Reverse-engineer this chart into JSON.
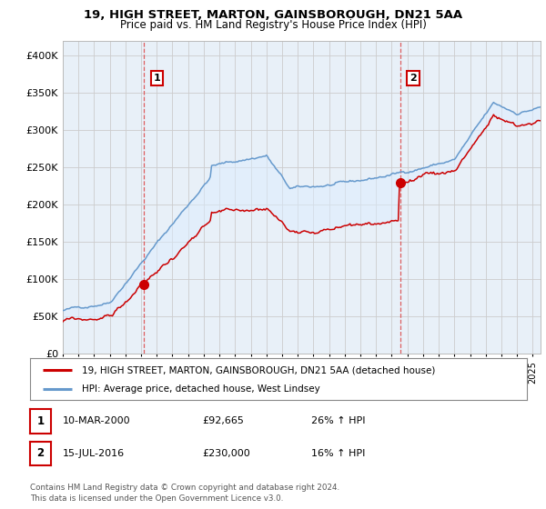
{
  "title": "19, HIGH STREET, MARTON, GAINSBOROUGH, DN21 5AA",
  "subtitle": "Price paid vs. HM Land Registry's House Price Index (HPI)",
  "ylabel_ticks": [
    "£0",
    "£50K",
    "£100K",
    "£150K",
    "£200K",
    "£250K",
    "£300K",
    "£350K",
    "£400K"
  ],
  "ylabel_values": [
    0,
    50000,
    100000,
    150000,
    200000,
    250000,
    300000,
    350000,
    400000
  ],
  "ylim": [
    0,
    420000
  ],
  "xlim_start": 1995.0,
  "xlim_end": 2025.5,
  "sale1_year": 2000.19,
  "sale1_price": 92665,
  "sale2_year": 2016.54,
  "sale2_price": 230000,
  "legend_line1": "19, HIGH STREET, MARTON, GAINSBOROUGH, DN21 5AA (detached house)",
  "legend_line2": "HPI: Average price, detached house, West Lindsey",
  "table_row1_num": "1",
  "table_row1_date": "10-MAR-2000",
  "table_row1_price": "£92,665",
  "table_row1_hpi": "26% ↑ HPI",
  "table_row2_num": "2",
  "table_row2_date": "15-JUL-2016",
  "table_row2_price": "£230,000",
  "table_row2_hpi": "16% ↑ HPI",
  "footer": "Contains HM Land Registry data © Crown copyright and database right 2024.\nThis data is licensed under the Open Government Licence v3.0.",
  "line_color_red": "#cc0000",
  "line_color_blue": "#6699cc",
  "fill_color_blue": "#ddeeff",
  "background_color": "#ffffff",
  "grid_color": "#cccccc",
  "vline_color": "#dd4444"
}
